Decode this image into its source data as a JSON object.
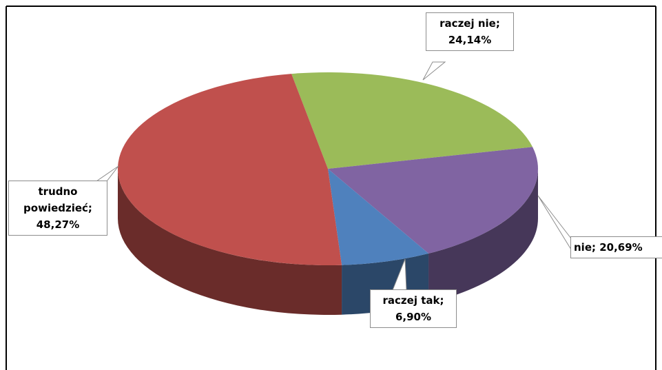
{
  "chart_data": {
    "type": "pie",
    "labels": [
      "raczej nie;",
      "nie;",
      "raczej tak;",
      "trudno powiedzieć;"
    ],
    "values": [
      24.14,
      20.69,
      6.9,
      48.27
    ],
    "value_labels": [
      "24,14%",
      "20,69%",
      "6,90%",
      "48,27%"
    ],
    "colors": [
      "#9bbb59",
      "#8064a2",
      "#4f81bd",
      "#c0504d"
    ],
    "style": "3d"
  }
}
